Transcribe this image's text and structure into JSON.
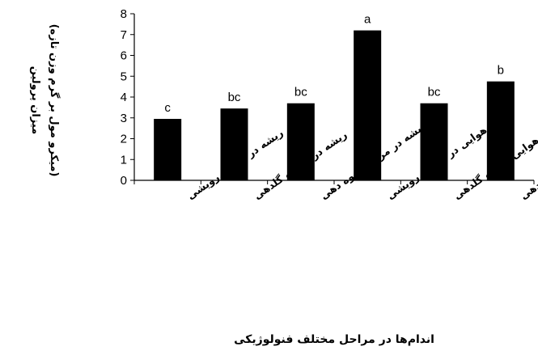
{
  "chart_data": {
    "type": "bar",
    "categories": [
      "ریشه در مرحله رویشی",
      "ریشه در مرحله گلدهی",
      "ریشه در مرحله میوه دهی",
      "اندام هوایی در مرحله رویشی",
      "اندام هوایی مرحله گلدهی",
      "اندام هوایی در مرحله میوه دهی"
    ],
    "values": [
      2.95,
      3.45,
      3.7,
      7.2,
      3.7,
      4.75
    ],
    "significance_letters": [
      "c",
      "bc",
      "bc",
      "a",
      "bc",
      "b"
    ],
    "ylim": [
      0,
      8
    ],
    "yticks": [
      "0",
      "1",
      "2",
      "3",
      "4",
      "5",
      "6",
      "7",
      "8"
    ],
    "ylabel_line1": "میزان پرولین",
    "ylabel_line2": "(میکرو مول بر گرم وزن تازه)",
    "xlabel": "اندام‌ها در مراحل مختلف فنولوژیکی",
    "grid": false,
    "legend": "none",
    "bar_color": "#000000"
  }
}
